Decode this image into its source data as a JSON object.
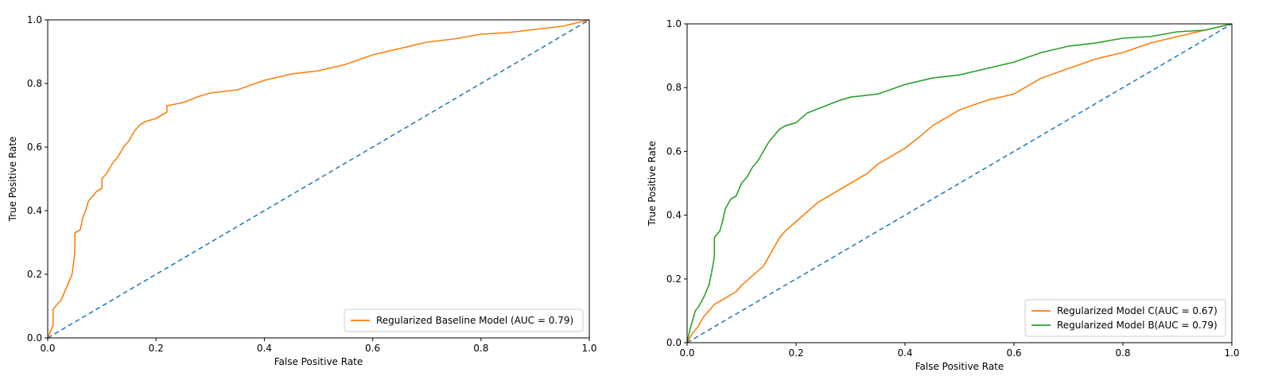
{
  "chart_data": [
    {
      "type": "line",
      "title": "",
      "xlabel": "False Positive Rate",
      "ylabel": "True Positive Rate",
      "xlim": [
        0,
        1
      ],
      "ylim": [
        0,
        1
      ],
      "xticks": [
        "0.0",
        "0.2",
        "0.4",
        "0.6",
        "0.8",
        "1.0"
      ],
      "yticks": [
        "0.0",
        "0.2",
        "0.4",
        "0.6",
        "0.8",
        "1.0"
      ],
      "grid": false,
      "legend_position": "lower-right",
      "series": [
        {
          "name": "Regularized Baseline Model (AUC = 0.79)",
          "color": "#ff7f0e",
          "style": "solid",
          "points": [
            [
              0,
              0
            ],
            [
              0.005,
              0.02
            ],
            [
              0.01,
              0.04
            ],
            [
              0.01,
              0.06
            ],
            [
              0.01,
              0.09
            ],
            [
              0.015,
              0.1
            ],
            [
              0.02,
              0.11
            ],
            [
              0.025,
              0.12
            ],
            [
              0.03,
              0.14
            ],
            [
              0.035,
              0.16
            ],
            [
              0.04,
              0.18
            ],
            [
              0.045,
              0.2
            ],
            [
              0.048,
              0.24
            ],
            [
              0.05,
              0.27
            ],
            [
              0.05,
              0.33
            ],
            [
              0.06,
              0.34
            ],
            [
              0.065,
              0.38
            ],
            [
              0.07,
              0.4
            ],
            [
              0.075,
              0.43
            ],
            [
              0.08,
              0.44
            ],
            [
              0.09,
              0.46
            ],
            [
              0.1,
              0.47
            ],
            [
              0.1,
              0.5
            ],
            [
              0.11,
              0.52
            ],
            [
              0.12,
              0.55
            ],
            [
              0.13,
              0.57
            ],
            [
              0.14,
              0.6
            ],
            [
              0.15,
              0.62
            ],
            [
              0.16,
              0.65
            ],
            [
              0.17,
              0.67
            ],
            [
              0.18,
              0.68
            ],
            [
              0.2,
              0.69
            ],
            [
              0.22,
              0.71
            ],
            [
              0.22,
              0.73
            ],
            [
              0.25,
              0.74
            ],
            [
              0.28,
              0.76
            ],
            [
              0.3,
              0.77
            ],
            [
              0.35,
              0.78
            ],
            [
              0.4,
              0.81
            ],
            [
              0.45,
              0.83
            ],
            [
              0.5,
              0.84
            ],
            [
              0.55,
              0.86
            ],
            [
              0.6,
              0.89
            ],
            [
              0.65,
              0.91
            ],
            [
              0.7,
              0.93
            ],
            [
              0.75,
              0.94
            ],
            [
              0.8,
              0.955
            ],
            [
              0.85,
              0.96
            ],
            [
              0.9,
              0.97
            ],
            [
              0.95,
              0.98
            ],
            [
              1.0,
              1.0
            ]
          ]
        },
        {
          "name": "",
          "color": "#1f77b4",
          "style": "dashed",
          "points": [
            [
              0,
              0
            ],
            [
              1,
              1
            ]
          ]
        }
      ]
    },
    {
      "type": "line",
      "title": "",
      "xlabel": "False Positive Rate",
      "ylabel": "True Positive Rate",
      "xlim": [
        0,
        1
      ],
      "ylim": [
        0,
        1
      ],
      "xticks": [
        "0.0",
        "0.2",
        "0.4",
        "0.6",
        "0.8",
        "1.0"
      ],
      "yticks": [
        "0.0",
        "0.2",
        "0.4",
        "0.6",
        "0.8",
        "1.0"
      ],
      "grid": false,
      "legend_position": "lower-right",
      "series": [
        {
          "name": "Regularized Model C(AUC = 0.67)",
          "color": "#ff7f0e",
          "style": "solid",
          "points": [
            [
              0,
              0
            ],
            [
              0.01,
              0.03
            ],
            [
              0.02,
              0.05
            ],
            [
              0.03,
              0.08
            ],
            [
              0.04,
              0.1
            ],
            [
              0.05,
              0.12
            ],
            [
              0.07,
              0.14
            ],
            [
              0.09,
              0.16
            ],
            [
              0.1,
              0.18
            ],
            [
              0.12,
              0.21
            ],
            [
              0.14,
              0.24
            ],
            [
              0.15,
              0.27
            ],
            [
              0.16,
              0.3
            ],
            [
              0.17,
              0.33
            ],
            [
              0.18,
              0.35
            ],
            [
              0.2,
              0.38
            ],
            [
              0.22,
              0.41
            ],
            [
              0.24,
              0.44
            ],
            [
              0.27,
              0.47
            ],
            [
              0.3,
              0.5
            ],
            [
              0.33,
              0.53
            ],
            [
              0.35,
              0.56
            ],
            [
              0.38,
              0.59
            ],
            [
              0.4,
              0.61
            ],
            [
              0.43,
              0.65
            ],
            [
              0.45,
              0.68
            ],
            [
              0.5,
              0.73
            ],
            [
              0.55,
              0.76
            ],
            [
              0.6,
              0.78
            ],
            [
              0.65,
              0.83
            ],
            [
              0.7,
              0.86
            ],
            [
              0.75,
              0.89
            ],
            [
              0.8,
              0.91
            ],
            [
              0.85,
              0.94
            ],
            [
              0.9,
              0.96
            ],
            [
              0.95,
              0.98
            ],
            [
              1.0,
              1.0
            ]
          ]
        },
        {
          "name": "Regularized Model B(AUC = 0.79)",
          "color": "#2ca02c",
          "style": "solid",
          "points": [
            [
              0,
              0
            ],
            [
              0.005,
              0.04
            ],
            [
              0.01,
              0.07
            ],
            [
              0.015,
              0.1
            ],
            [
              0.02,
              0.11
            ],
            [
              0.03,
              0.14
            ],
            [
              0.04,
              0.18
            ],
            [
              0.045,
              0.22
            ],
            [
              0.05,
              0.27
            ],
            [
              0.05,
              0.33
            ],
            [
              0.06,
              0.35
            ],
            [
              0.065,
              0.38
            ],
            [
              0.07,
              0.42
            ],
            [
              0.08,
              0.45
            ],
            [
              0.09,
              0.46
            ],
            [
              0.1,
              0.5
            ],
            [
              0.11,
              0.52
            ],
            [
              0.12,
              0.55
            ],
            [
              0.13,
              0.57
            ],
            [
              0.14,
              0.6
            ],
            [
              0.15,
              0.63
            ],
            [
              0.16,
              0.65
            ],
            [
              0.17,
              0.67
            ],
            [
              0.18,
              0.68
            ],
            [
              0.2,
              0.69
            ],
            [
              0.22,
              0.72
            ],
            [
              0.25,
              0.74
            ],
            [
              0.28,
              0.76
            ],
            [
              0.3,
              0.77
            ],
            [
              0.35,
              0.78
            ],
            [
              0.4,
              0.81
            ],
            [
              0.45,
              0.83
            ],
            [
              0.5,
              0.84
            ],
            [
              0.55,
              0.86
            ],
            [
              0.6,
              0.88
            ],
            [
              0.65,
              0.91
            ],
            [
              0.7,
              0.93
            ],
            [
              0.75,
              0.94
            ],
            [
              0.8,
              0.955
            ],
            [
              0.85,
              0.96
            ],
            [
              0.9,
              0.975
            ],
            [
              0.95,
              0.98
            ],
            [
              1.0,
              1.0
            ]
          ]
        },
        {
          "name": "",
          "color": "#1f77b4",
          "style": "dashed",
          "points": [
            [
              0,
              0
            ],
            [
              1,
              1
            ]
          ]
        }
      ]
    }
  ]
}
